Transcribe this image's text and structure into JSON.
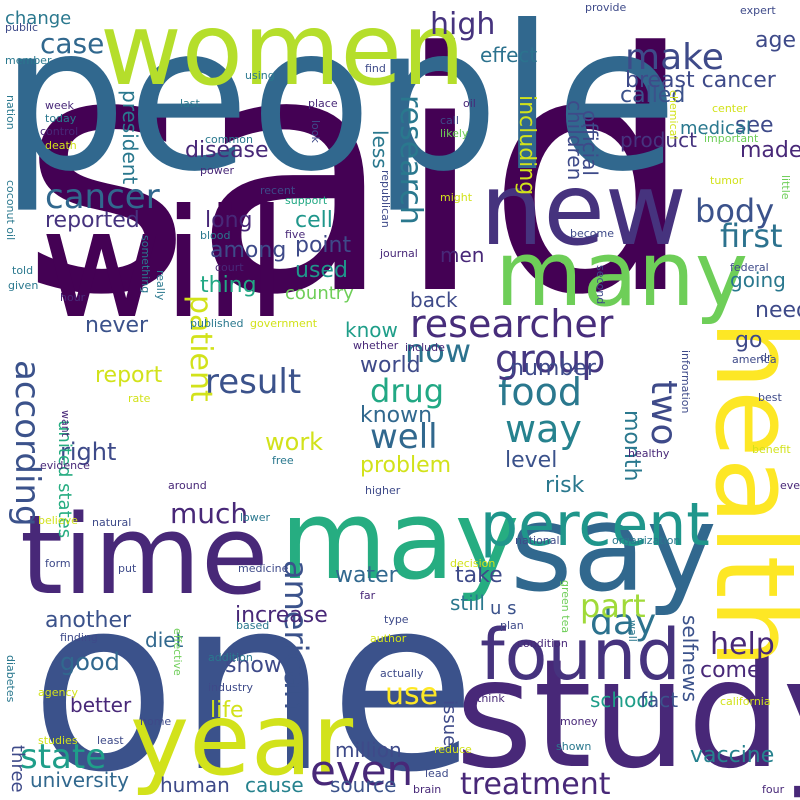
{
  "words": {
    "said": {
      "text": "said",
      "color": "#440154"
    },
    "one": {
      "text": "one",
      "color": "#3b528b"
    },
    "people": {
      "text": "people",
      "color": "#31688e"
    },
    "study": {
      "text": "study",
      "color": "#482878"
    },
    "will": {
      "text": "will",
      "color": "#440154"
    },
    "women": {
      "text": "women",
      "color": "#b5de2b"
    },
    "new": {
      "text": "new",
      "color": "#46337e"
    },
    "say": {
      "text": "say",
      "color": "#31688e"
    },
    "time": {
      "text": "time",
      "color": "#482878"
    },
    "may": {
      "text": "may",
      "color": "#26ad81"
    },
    "health": {
      "text": "health",
      "color": "#fde725"
    },
    "year": {
      "text": "year",
      "color": "#d2e21b"
    },
    "many": {
      "text": "many",
      "color": "#6ece58"
    },
    "found": {
      "text": "found",
      "color": "#46337e"
    },
    "percent": {
      "text": "percent",
      "color": "#1f968b"
    },
    "researcher": {
      "text": "researcher",
      "color": "#472d7b"
    },
    "make": {
      "text": "make",
      "color": "#3e4a89"
    },
    "cancer": {
      "text": "cancer",
      "color": "#31688e"
    },
    "even": {
      "text": "even",
      "color": "#482878"
    },
    "according": {
      "text": "according",
      "color": "#3b528b"
    },
    "result": {
      "text": "result",
      "color": "#3b528b"
    },
    "day": {
      "text": "day",
      "color": "#2c728e"
    },
    "much": {
      "text": "much",
      "color": "#482878"
    },
    "food": {
      "text": "food",
      "color": "#2a788e"
    },
    "way": {
      "text": "way",
      "color": "#26828e"
    },
    "two": {
      "text": "two",
      "color": "#3e4a89"
    },
    "group": {
      "text": "group",
      "color": "#453781"
    },
    "well": {
      "text": "well",
      "color": "#31688e"
    },
    "drug": {
      "text": "drug",
      "color": "#22a884"
    },
    "now": {
      "text": "now",
      "color": "#2c728e"
    },
    "state": {
      "text": "state",
      "color": "#1f9e89"
    },
    "treatment": {
      "text": "treatment",
      "color": "#482878"
    },
    "help": {
      "text": "help",
      "color": "#482878"
    },
    "first": {
      "text": "first",
      "color": "#2c728e"
    },
    "body": {
      "text": "body",
      "color": "#3b528b"
    },
    "use": {
      "text": "use",
      "color": "#fde725"
    },
    "american": {
      "text": "american",
      "color": "#3b528b"
    },
    "part": {
      "text": "part",
      "color": "#a0da39"
    },
    "research": {
      "text": "research",
      "color": "#2a788e"
    },
    "high": {
      "text": "high",
      "color": "#46337e"
    },
    "case": {
      "text": "case",
      "color": "#31688e"
    },
    "including": {
      "text": "including",
      "color": "#d2e21b"
    },
    "patient": {
      "text": "patient",
      "color": "#d2e21b"
    },
    "right": {
      "text": "right",
      "color": "#3e4a89"
    },
    "work": {
      "text": "work",
      "color": "#d2e21b"
    },
    "problem": {
      "text": "problem",
      "color": "#d2e21b"
    },
    "risk": {
      "text": "risk",
      "color": "#2a788e"
    },
    "level": {
      "text": "level",
      "color": "#3b528b"
    },
    "report": {
      "text": "report",
      "color": "#d2e21b"
    },
    "increase": {
      "text": "increase",
      "color": "#482878"
    },
    "good": {
      "text": "good",
      "color": "#31688e"
    },
    "show": {
      "text": "show",
      "color": "#3e4a89"
    },
    "life": {
      "text": "life",
      "color": "#d2e21b"
    },
    "water": {
      "text": "water",
      "color": "#31688e"
    },
    "take": {
      "text": "take",
      "color": "#3e4a89"
    },
    "still": {
      "text": "still",
      "color": "#2a788e"
    },
    "school": {
      "text": "school",
      "color": "#1f9e89"
    },
    "another": {
      "text": "another",
      "color": "#3b528b"
    },
    "used": {
      "text": "used",
      "color": "#1f968b"
    },
    "long": {
      "text": "long",
      "color": "#482878"
    },
    "among": {
      "text": "among",
      "color": "#3e4a89"
    },
    "thing": {
      "text": "thing",
      "color": "#22a884"
    },
    "point": {
      "text": "point",
      "color": "#3e4a89"
    },
    "cell": {
      "text": "cell",
      "color": "#1f968b"
    },
    "country": {
      "text": "country",
      "color": "#6ece58"
    },
    "know": {
      "text": "know",
      "color": "#1f9e89"
    },
    "back": {
      "text": "back",
      "color": "#3e4a89"
    },
    "men": {
      "text": "men",
      "color": "#482878"
    },
    "go": {
      "text": "go",
      "color": "#3e4a89"
    },
    "need": {
      "text": "need",
      "color": "#3e4a89"
    },
    "going": {
      "text": "going",
      "color": "#2a788e"
    },
    "made": {
      "text": "made",
      "color": "#482878"
    },
    "see": {
      "text": "see",
      "color": "#3e4a89"
    },
    "disease": {
      "text": "disease",
      "color": "#482878"
    },
    "reported": {
      "text": "reported",
      "color": "#46337e"
    },
    "never": {
      "text": "never",
      "color": "#3b528b"
    },
    "world": {
      "text": "world",
      "color": "#3e4a89"
    },
    "known": {
      "text": "known",
      "color": "#31688e"
    },
    "number": {
      "text": "number",
      "color": "#3e4a89"
    },
    "month": {
      "text": "month",
      "color": "#2a788e"
    },
    "called": {
      "text": "called",
      "color": "#3b528b"
    },
    "age": {
      "text": "age",
      "color": "#3e4a89"
    },
    "breast_cancer": {
      "text": "breast cancer",
      "color": "#3e4a89"
    },
    "effect": {
      "text": "effect",
      "color": "#2c728e"
    },
    "product": {
      "text": "product",
      "color": "#46337e"
    },
    "medical": {
      "text": "medical",
      "color": "#2a788e"
    },
    "children": {
      "text": "children",
      "color": "#3e4a89"
    },
    "official": {
      "text": "official",
      "color": "#3e4a89"
    },
    "president": {
      "text": "president",
      "color": "#2a788e"
    },
    "change": {
      "text": "change",
      "color": "#2a788e"
    },
    "less": {
      "text": "less",
      "color": "#2a788e"
    },
    "united_states": {
      "text": "united states",
      "color": "#26ad81"
    },
    "u_s": {
      "text": "u s",
      "color": "#3b528b"
    },
    "vaccine": {
      "text": "vaccine",
      "color": "#26828e"
    },
    "fact": {
      "text": "fact",
      "color": "#3b528b"
    },
    "come": {
      "text": "come",
      "color": "#482878"
    },
    "selfnews": {
      "text": "selfnews",
      "color": "#3b528b"
    },
    "university": {
      "text": "university",
      "color": "#31688e"
    },
    "human": {
      "text": "human",
      "color": "#3e4a89"
    },
    "cause": {
      "text": "cause",
      "color": "#26828e"
    },
    "source": {
      "text": "source",
      "color": "#3b528b"
    },
    "million": {
      "text": "million",
      "color": "#3e4a89"
    },
    "better": {
      "text": "better",
      "color": "#482878"
    },
    "diet": {
      "text": "diet",
      "color": "#31688e"
    },
    "issue": {
      "text": "issue",
      "color": "#3e4a89"
    },
    "three": {
      "text": "three",
      "color": "#3e4a89"
    },
    "public": {
      "text": "public",
      "color": "#3e4a89"
    },
    "member": {
      "text": "member",
      "color": "#2a788e"
    },
    "nation": {
      "text": "nation",
      "color": "#2a788e"
    },
    "week": {
      "text": "week",
      "color": "#482878"
    },
    "today": {
      "text": "today",
      "color": "#2a788e"
    },
    "control": {
      "text": "control",
      "color": "#482878"
    },
    "death": {
      "text": "death",
      "color": "#d2e21b"
    },
    "last": {
      "text": "last",
      "color": "#2a788e"
    },
    "common": {
      "text": "common",
      "color": "#2a788e"
    },
    "power": {
      "text": "power",
      "color": "#482878"
    },
    "using": {
      "text": "using",
      "color": "#2a788e"
    },
    "place": {
      "text": "place",
      "color": "#482878"
    },
    "look": {
      "text": "look",
      "color": "#3e4a89"
    },
    "oil": {
      "text": "oil",
      "color": "#482878"
    },
    "call": {
      "text": "call",
      "color": "#3e4a89"
    },
    "likely": {
      "text": "likely",
      "color": "#6ece58"
    },
    "find": {
      "text": "find",
      "color": "#3e4a89"
    },
    "provide": {
      "text": "provide",
      "color": "#3e4a89"
    },
    "expert": {
      "text": "expert",
      "color": "#3e4a89"
    },
    "center": {
      "text": "center",
      "color": "#d2e21b"
    },
    "important": {
      "text": "important",
      "color": "#6ece58"
    },
    "chemical": {
      "text": "chemical",
      "color": "#d2e21b"
    },
    "tumor": {
      "text": "tumor",
      "color": "#d2e21b"
    },
    "little": {
      "text": "little",
      "color": "#6ece58"
    },
    "recent": {
      "text": "recent",
      "color": "#3e4a89"
    },
    "support": {
      "text": "support",
      "color": "#22a884"
    },
    "might": {
      "text": "might",
      "color": "#d2e21b"
    },
    "republican": {
      "text": "republican",
      "color": "#3e4a89"
    },
    "coconut_oil": {
      "text": "coconut oil",
      "color": "#2a788e"
    },
    "told": {
      "text": "told",
      "color": "#2a788e"
    },
    "given": {
      "text": "given",
      "color": "#2a788e"
    },
    "hour": {
      "text": "hour",
      "color": "#482878"
    },
    "something": {
      "text": "something",
      "color": "#2a788e"
    },
    "really": {
      "text": "really",
      "color": "#2a788e"
    },
    "blood": {
      "text": "blood",
      "color": "#2a788e"
    },
    "court": {
      "text": "court",
      "color": "#482878"
    },
    "five": {
      "text": "five",
      "color": "#482878"
    },
    "journal": {
      "text": "journal",
      "color": "#482878"
    },
    "become": {
      "text": "become",
      "color": "#3e4a89"
    },
    "second": {
      "text": "second",
      "color": "#3e4a89"
    },
    "federal": {
      "text": "federal",
      "color": "#3e4a89"
    },
    "published": {
      "text": "published",
      "color": "#2a788e"
    },
    "government": {
      "text": "government",
      "color": "#d2e21b"
    },
    "whether": {
      "text": "whether",
      "color": "#482878"
    },
    "include": {
      "text": "include",
      "color": "#482878"
    },
    "dr": {
      "text": "dr",
      "color": "#3e4a89"
    },
    "america": {
      "text": "america",
      "color": "#3e4a89"
    },
    "information": {
      "text": "information",
      "color": "#3e4a89"
    },
    "best": {
      "text": "best",
      "color": "#3e4a89"
    },
    "healthy": {
      "text": "healthy",
      "color": "#482878"
    },
    "benefit": {
      "text": "benefit",
      "color": "#d2e21b"
    },
    "every": {
      "text": "every",
      "color": "#482878"
    },
    "want": {
      "text": "want",
      "color": "#482878"
    },
    "rate": {
      "text": "rate",
      "color": "#d2e21b"
    },
    "evidence": {
      "text": "evidence",
      "color": "#482878"
    },
    "around": {
      "text": "around",
      "color": "#482878"
    },
    "free": {
      "text": "free",
      "color": "#2a788e"
    },
    "higher": {
      "text": "higher",
      "color": "#3e4a89"
    },
    "believe": {
      "text": "believe",
      "color": "#d2e21b"
    },
    "natural": {
      "text": "natural",
      "color": "#3e4a89"
    },
    "lower": {
      "text": "lower",
      "color": "#2a788e"
    },
    "national": {
      "text": "national",
      "color": "#3e4a89"
    },
    "organization": {
      "text": "organization",
      "color": "#2a788e"
    },
    "form": {
      "text": "form",
      "color": "#3e4a89"
    },
    "put": {
      "text": "put",
      "color": "#3e4a89"
    },
    "medicine": {
      "text": "medicine",
      "color": "#3e4a89"
    },
    "decision": {
      "text": "decision",
      "color": "#d2e21b"
    },
    "green_tea": {
      "text": "green tea",
      "color": "#6ece58"
    },
    "far": {
      "text": "far",
      "color": "#482878"
    },
    "wall": {
      "text": "wall",
      "color": "#2a788e"
    },
    "finding": {
      "text": "finding",
      "color": "#3e4a89"
    },
    "addition": {
      "text": "addition",
      "color": "#2a788e"
    },
    "based": {
      "text": "based",
      "color": "#2a788e"
    },
    "author": {
      "text": "author",
      "color": "#d2e21b"
    },
    "type": {
      "text": "type",
      "color": "#3e4a89"
    },
    "plan": {
      "text": "plan",
      "color": "#3e4a89"
    },
    "condition": {
      "text": "condition",
      "color": "#482878"
    },
    "diabetes": {
      "text": "diabetes",
      "color": "#2a788e"
    },
    "effective": {
      "text": "effective",
      "color": "#6ece58"
    },
    "agency": {
      "text": "agency",
      "color": "#d2e21b"
    },
    "industry": {
      "text": "industry",
      "color": "#3e4a89"
    },
    "actually": {
      "text": "actually",
      "color": "#3e4a89"
    },
    "think": {
      "text": "think",
      "color": "#482878"
    },
    "california": {
      "text": "california",
      "color": "#d2e21b"
    },
    "home": {
      "text": "home",
      "color": "#3e4a89"
    },
    "studies": {
      "text": "studies",
      "color": "#d2e21b"
    },
    "least": {
      "text": "least",
      "color": "#3e4a89"
    },
    "reduce": {
      "text": "reduce",
      "color": "#d2e21b"
    },
    "money": {
      "text": "money",
      "color": "#482878"
    },
    "shown": {
      "text": "shown",
      "color": "#2a788e"
    },
    "lead": {
      "text": "lead",
      "color": "#3e4a89"
    },
    "brain": {
      "text": "brain",
      "color": "#482878"
    },
    "four": {
      "text": "four",
      "color": "#482878"
    }
  }
}
